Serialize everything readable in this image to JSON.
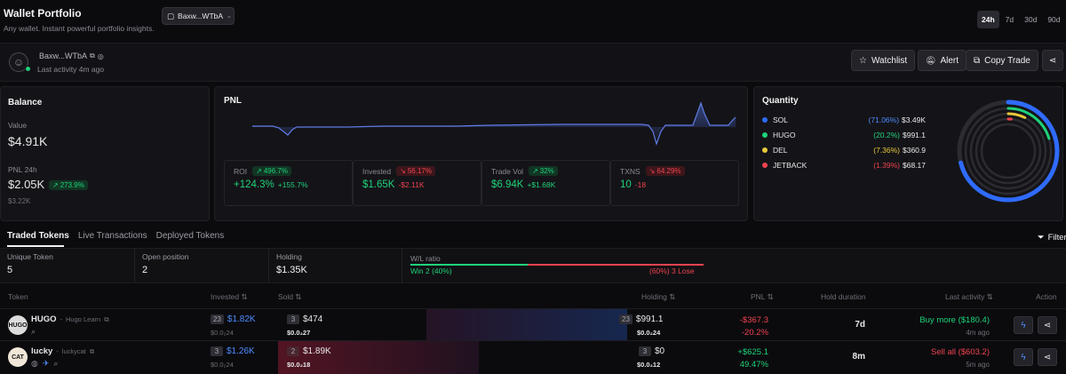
{
  "header": {
    "title": "Wallet Portfolio",
    "subtitle": "Any wallet. Instant powerful portfolio insights.",
    "wallet_selector": "Baxw...WTbA",
    "ranges": [
      "24h",
      "7d",
      "30d",
      "90d"
    ],
    "active_range": "24h"
  },
  "profile": {
    "wallet": "Baxw...WTbA",
    "last_activity": "Last activity 4m ago",
    "buttons": {
      "watchlist": "Watchlist",
      "alert": "Alert",
      "copy_trade": "Copy Trade"
    }
  },
  "balance": {
    "title": "Balance",
    "value_label": "Value",
    "value": "$4.91K",
    "pnl_label": "PNL 24h",
    "pnl_value": "$2.05K",
    "pnl_pct": "273.9%",
    "pnl_sub": "$3.22K"
  },
  "pnl_card": {
    "title": "PNL",
    "stats": [
      {
        "label": "ROI",
        "badge": "496.7%",
        "badge_dir": "up",
        "value": "+124.3%",
        "sub": "+155.7%",
        "value_color": "green",
        "sub_color": "green"
      },
      {
        "label": "Invested",
        "badge": "56.17%",
        "badge_dir": "down",
        "value": "$1.65K",
        "sub": "-$2.11K",
        "value_color": "green",
        "sub_color": "red"
      },
      {
        "label": "Trade Vol",
        "badge": "32%",
        "badge_dir": "up",
        "value": "$6.94K",
        "sub": "+$1.68K",
        "value_color": "green",
        "sub_color": "green"
      },
      {
        "label": "TXNS",
        "badge": "64.29%",
        "badge_dir": "down",
        "value": "10",
        "sub": "-18",
        "value_color": "green",
        "sub_color": "red"
      }
    ]
  },
  "quantity": {
    "title": "Quantity",
    "items": [
      {
        "name": "SOL",
        "pct": "(71.06%)",
        "value": "$3.49K",
        "color": "#2f6bff",
        "fraction": 0.7106
      },
      {
        "name": "HUGO",
        "pct": "(20.2%)",
        "value": "$991.1",
        "color": "#1fd27a",
        "fraction": 0.202
      },
      {
        "name": "DEL",
        "pct": "(7.36%)",
        "value": "$360.9",
        "color": "#e8c93a",
        "fraction": 0.0736
      },
      {
        "name": "JETBACK",
        "pct": "(1.39%)",
        "value": "$68.17",
        "color": "#f0434f",
        "fraction": 0.0139
      }
    ]
  },
  "tabs": [
    "Traded Tokens",
    "Live Transactions",
    "Deployed Tokens"
  ],
  "filter_label": "Filter",
  "summary": {
    "unique_label": "Unique Token",
    "unique": "5",
    "open_label": "Open position",
    "open": "2",
    "holding_label": "Holding",
    "holding": "$1.35K",
    "wl_label": "W/L ratio",
    "win_text": "Win 2 (40%)",
    "lose_text": "(60%) 3 Lose",
    "win_fraction": 0.4
  },
  "table": {
    "headers": {
      "token": "Token",
      "invested": "Invested",
      "sold": "Sold",
      "holding": "Holding",
      "pnl": "PNL",
      "hold_duration": "Hold duration",
      "last_activity": "Last activity",
      "action": "Action"
    },
    "rows": [
      {
        "symbol": "HUGO",
        "name": "Hugo Learn",
        "icon_text": "HUGO",
        "inv_count": "23",
        "invested": "$1.82K",
        "inv_sub": "$0.0₂24",
        "sold_count": "3",
        "sold": "$474",
        "sold_sub": "$0.0₂27",
        "hold_count": "23",
        "holding": "$991.1",
        "hold_sub": "$0.0₂24",
        "pnl": "-$367.3",
        "pnl_pct": "-20.2%",
        "pnl_color": "red",
        "duration": "7d",
        "activity": "Buy more ($180.4)",
        "activity_color": "green",
        "ago": "4m ago"
      },
      {
        "symbol": "lucky",
        "name": "luckycat",
        "icon_text": "CAT",
        "inv_count": "3",
        "invested": "$1.26K",
        "inv_sub": "$0.0₂24",
        "sold_count": "2",
        "sold": "$1.89K",
        "sold_sub": "$0.0₂18",
        "hold_count": "3",
        "holding": "$0",
        "hold_sub": "$0.0₂12",
        "pnl": "+$625.1",
        "pnl_pct": "49.47%",
        "pnl_color": "green",
        "duration": "8m",
        "activity": "Sell all ($603.2)",
        "activity_color": "red",
        "ago": "5m ago"
      }
    ]
  }
}
